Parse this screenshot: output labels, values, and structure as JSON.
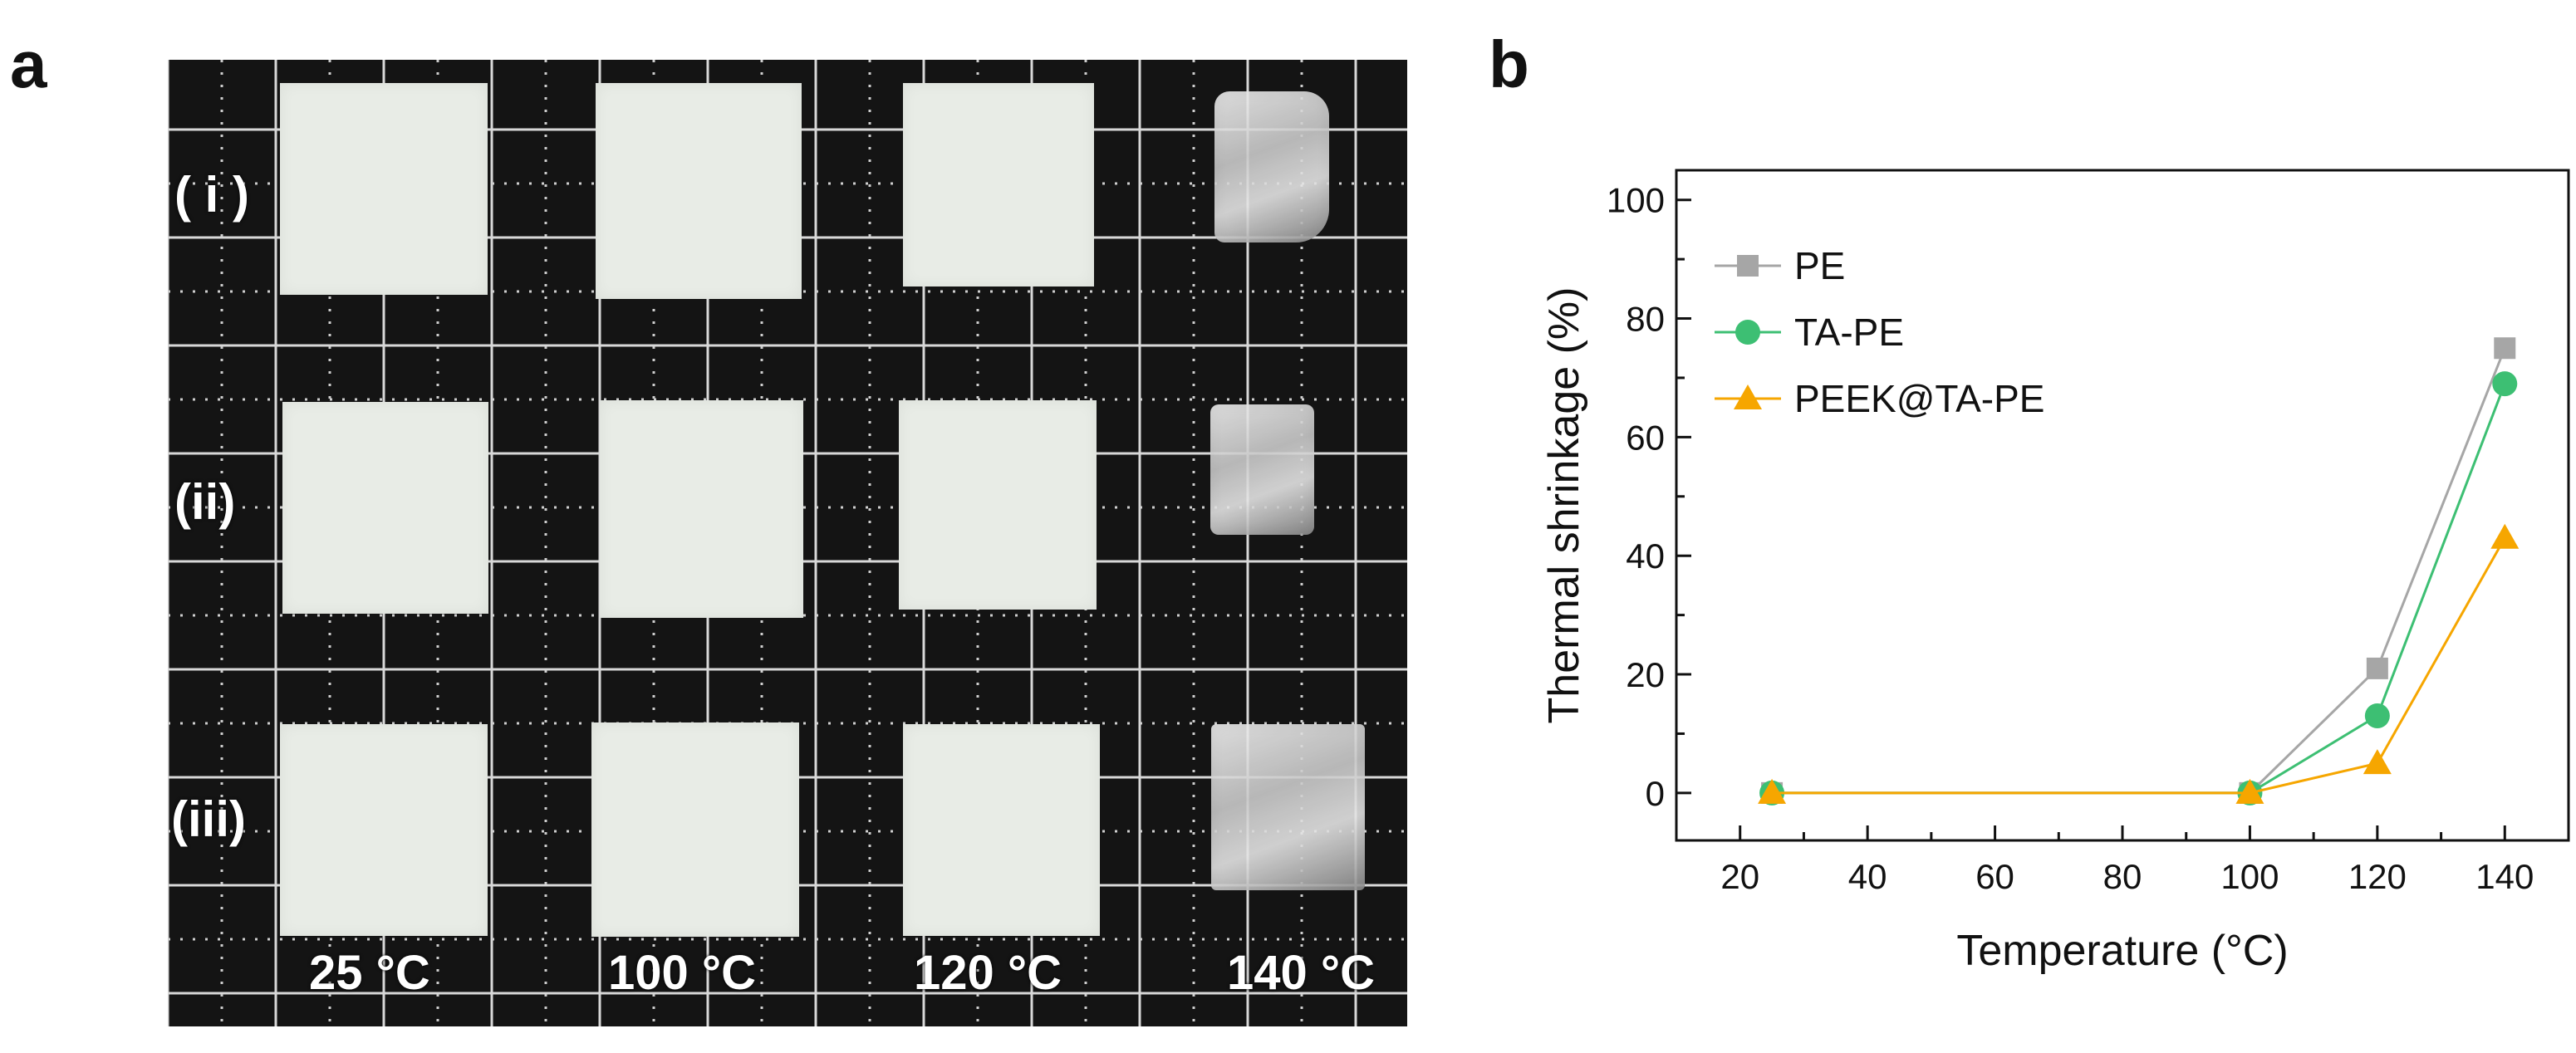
{
  "panel_a": {
    "letter": "a",
    "row_labels": [
      "( i )",
      "(ii)",
      "(iii)"
    ],
    "column_labels": [
      "25 °C",
      "100 °C",
      "120 °C",
      "140 °C"
    ]
  },
  "panel_b": {
    "letter": "b"
  },
  "chart_data": {
    "type": "line",
    "xlabel": "Temperature (°C)",
    "ylabel": "Thermal shrinkage (%)",
    "xlim": [
      10,
      150
    ],
    "ylim": [
      -8,
      105
    ],
    "xticks": [
      20,
      40,
      60,
      80,
      100,
      120,
      140
    ],
    "yticks": [
      0,
      20,
      40,
      60,
      80,
      100
    ],
    "grid": false,
    "legend_position": "upper-left",
    "x": [
      25,
      100,
      120,
      140
    ],
    "series": [
      {
        "name": "PE",
        "values": [
          0,
          0,
          21,
          75
        ],
        "color": "#a6a6a6",
        "marker": "square"
      },
      {
        "name": "TA-PE",
        "values": [
          0,
          0,
          13,
          69
        ],
        "color": "#3dbf73",
        "marker": "circle"
      },
      {
        "name": "PEEK@TA-PE",
        "values": [
          0,
          0,
          5,
          43
        ],
        "color": "#f6a600",
        "marker": "triangle"
      }
    ]
  }
}
